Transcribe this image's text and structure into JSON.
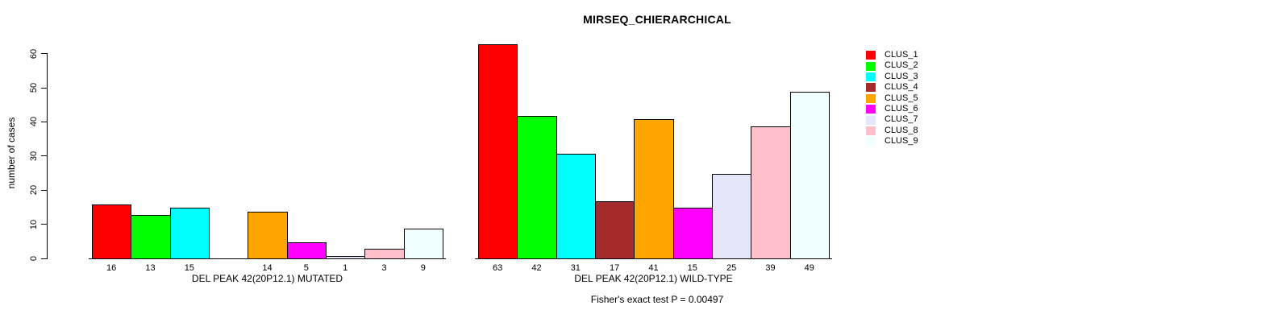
{
  "figure": {
    "background": "#ffffff",
    "text_color": "#000000"
  },
  "chart_data": {
    "type": "bar",
    "title": "MIRSEQ_CHIERARCHICAL",
    "ylabel": "number of cases",
    "xlabel": "",
    "ylim": [
      0,
      63
    ],
    "y_ticks": [
      0,
      10,
      20,
      30,
      40,
      50,
      60
    ],
    "grid": false,
    "bar_border_color": "#000000",
    "legend_position": "right",
    "clusters": [
      {
        "name": "CLUS_1",
        "color": "#FF0000"
      },
      {
        "name": "CLUS_2",
        "color": "#00FF00"
      },
      {
        "name": "CLUS_3",
        "color": "#00FFFF"
      },
      {
        "name": "CLUS_4",
        "color": "#A52A2A"
      },
      {
        "name": "CLUS_5",
        "color": "#FFA500"
      },
      {
        "name": "CLUS_6",
        "color": "#FF00FF"
      },
      {
        "name": "CLUS_7",
        "color": "#E6E6FA"
      },
      {
        "name": "CLUS_8",
        "color": "#FFC0CB"
      },
      {
        "name": "CLUS_9",
        "color": "#F0FFFF"
      }
    ],
    "groups": [
      {
        "label": "DEL PEAK 42(20P12.1) MUTATED",
        "values": [
          16,
          13,
          15,
          0,
          14,
          5,
          1,
          3,
          9
        ],
        "value_labels": [
          "16",
          "13",
          "15",
          "",
          "14",
          "5",
          "1",
          "3",
          "9"
        ]
      },
      {
        "label": "DEL PEAK 42(20P12.1) WILD-TYPE",
        "values": [
          63,
          42,
          31,
          17,
          41,
          15,
          25,
          39,
          49
        ],
        "value_labels": [
          "63",
          "42",
          "31",
          "17",
          "41",
          "15",
          "25",
          "39",
          "49"
        ]
      }
    ],
    "annotation": "Fisher's exact test P = 0.00497"
  }
}
